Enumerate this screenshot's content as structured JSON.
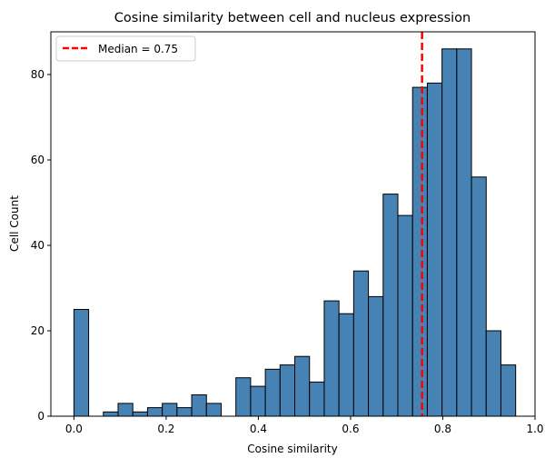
{
  "chart_data": {
    "type": "bar",
    "title": "Cosine similarity between cell and nucleus expression",
    "xlabel": "Cosine similarity",
    "ylabel": "Cell Count",
    "xlim": [
      -0.05,
      1.0
    ],
    "ylim": [
      0,
      90
    ],
    "xticks": [
      0.0,
      0.2,
      0.4,
      0.6,
      0.8,
      1.0
    ],
    "xtick_labels": [
      "0.0",
      "0.2",
      "0.4",
      "0.6",
      "0.8",
      "1.0"
    ],
    "yticks": [
      0,
      20,
      40,
      60,
      80
    ],
    "ytick_labels": [
      "0",
      "20",
      "40",
      "60",
      "80"
    ],
    "bin_start": 0.0,
    "bin_end": 0.958,
    "values": [
      25,
      0,
      1,
      3,
      1,
      2,
      3,
      2,
      5,
      3,
      0,
      9,
      7,
      11,
      12,
      14,
      8,
      27,
      24,
      34,
      28,
      52,
      47,
      77,
      78,
      86,
      86,
      56,
      20,
      12
    ],
    "bar_color": "#4682b4",
    "edge_color": "#000000",
    "grid": false,
    "median_line": {
      "value": 0.755,
      "color": "#ff0000",
      "style": "dashed"
    },
    "legend": {
      "position": "top-left",
      "entries": [
        "Median = 0.75"
      ]
    }
  }
}
